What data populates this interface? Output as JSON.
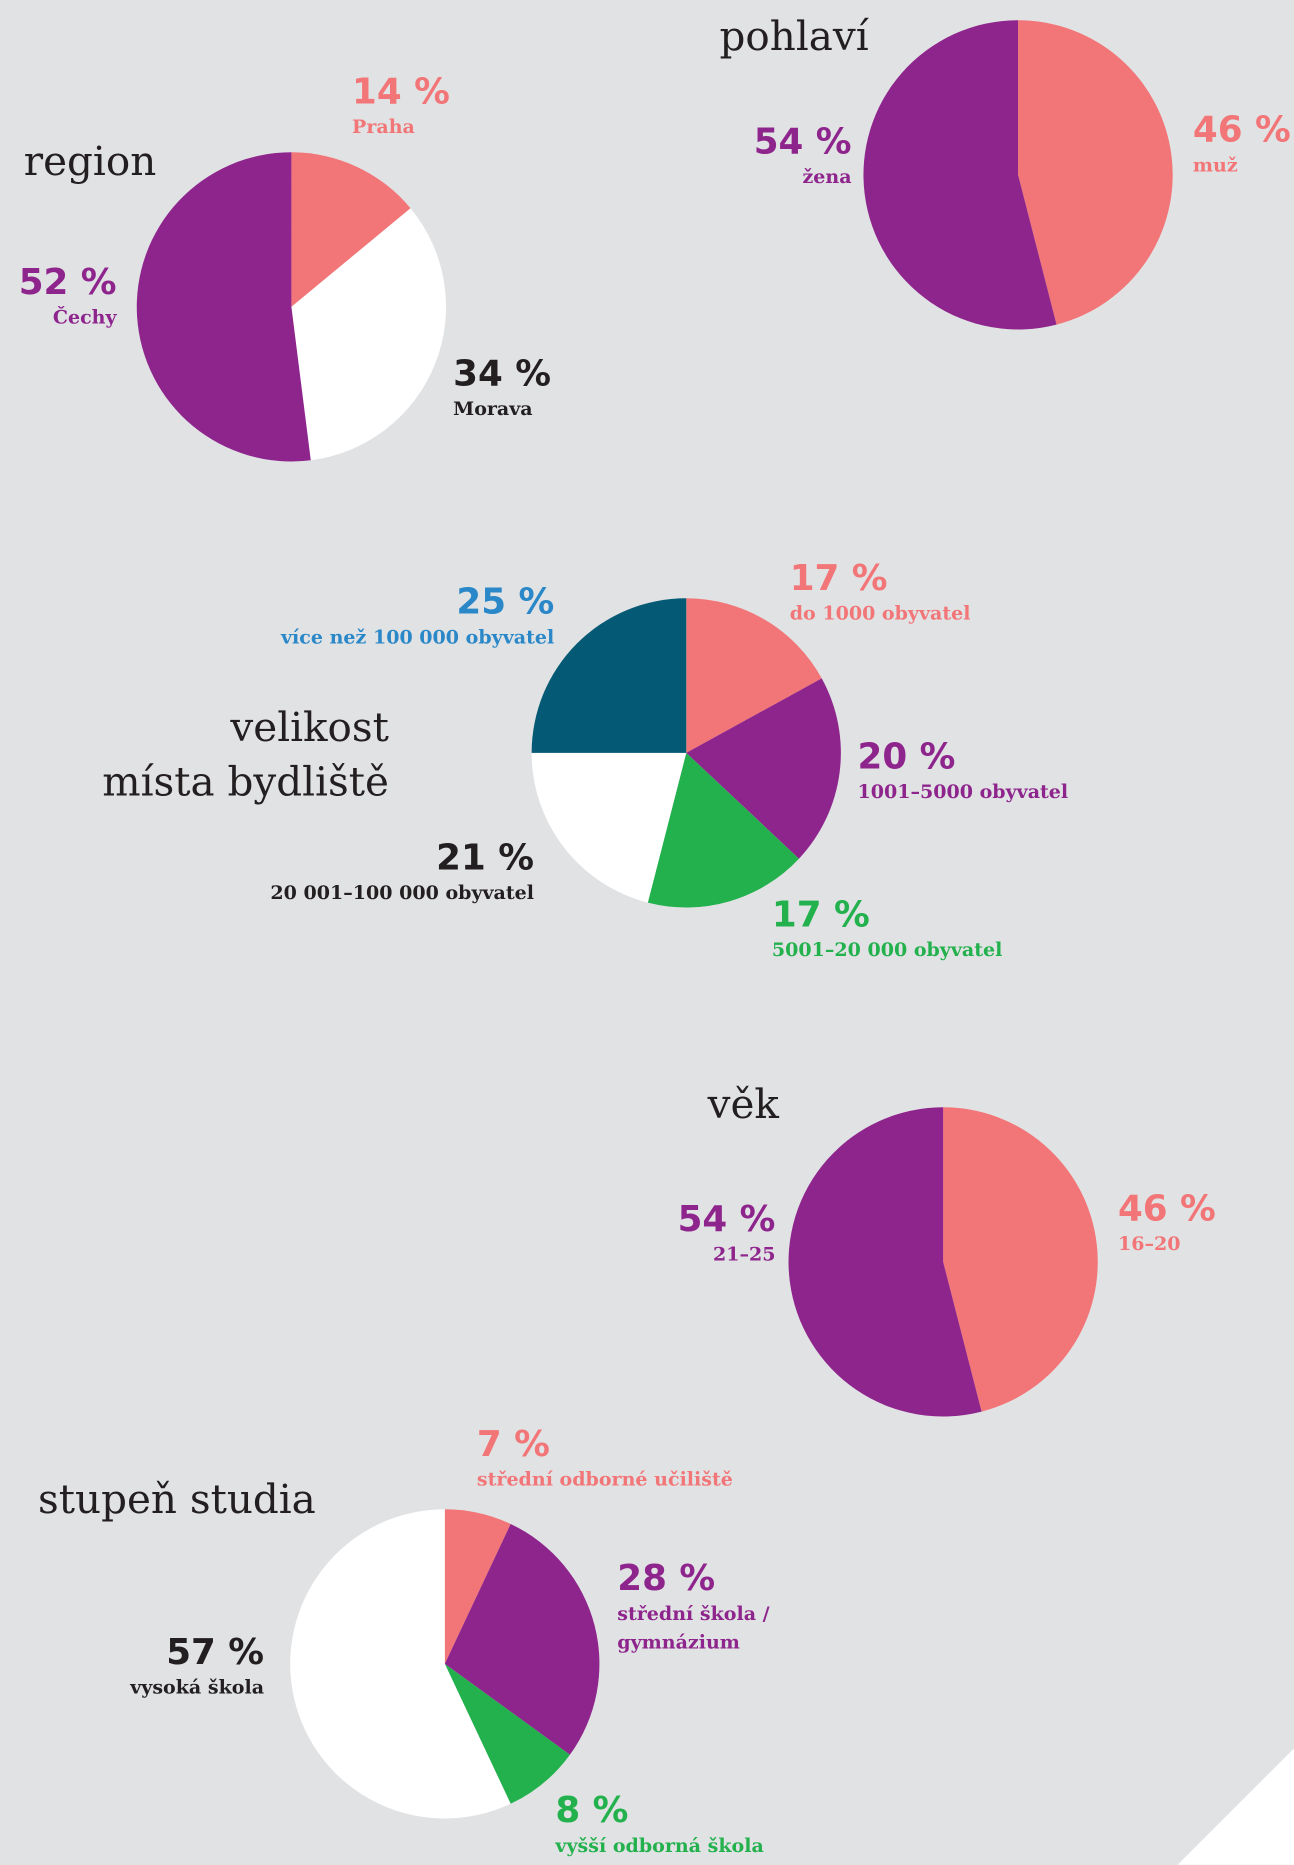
{
  "chart_data": [
    {
      "type": "pie",
      "title": "region",
      "categories": [
        "Praha",
        "Morava",
        "Čechy"
      ],
      "values": [
        14,
        34,
        52
      ],
      "value_labels": [
        "14 %",
        "34 %",
        "52 %"
      ],
      "colors": [
        "#f27577",
        "#ffffff",
        "#8e258d"
      ],
      "label_colors": [
        "#f27577",
        "#231f20",
        "#8e258d"
      ]
    },
    {
      "type": "pie",
      "title": "pohlaví",
      "categories": [
        "muž",
        "žena"
      ],
      "values": [
        46,
        54
      ],
      "value_labels": [
        "46 %",
        "54 %"
      ],
      "colors": [
        "#f27577",
        "#8e258d"
      ],
      "label_colors": [
        "#f27577",
        "#8e258d"
      ]
    },
    {
      "type": "pie",
      "title": "velikost\nmísta bydliště",
      "categories": [
        "do 1000 obyvatel",
        "1001–5000 obyvatel",
        "5001–20 000 obyvatel",
        "20 001–100 000 obyvatel",
        "více než 100 000 obyvatel"
      ],
      "values": [
        17,
        20,
        17,
        21,
        25
      ],
      "value_labels": [
        "17 %",
        "20 %",
        "17 %",
        "21 %",
        "25 %"
      ],
      "colors": [
        "#f27577",
        "#8e258d",
        "#23b14d",
        "#ffffff",
        "#045a75"
      ],
      "label_colors": [
        "#f27577",
        "#8e258d",
        "#23b14d",
        "#231f20",
        "#2a88c8"
      ]
    },
    {
      "type": "pie",
      "title": "věk",
      "categories": [
        "16–20",
        "21–25"
      ],
      "values": [
        46,
        54
      ],
      "value_labels": [
        "46 %",
        "54 %"
      ],
      "colors": [
        "#f27577",
        "#8e258d"
      ],
      "label_colors": [
        "#f27577",
        "#8e258d"
      ]
    },
    {
      "type": "pie",
      "title": "stupeň studia",
      "categories": [
        "střední odborné učiliště",
        "střední škola /\ngymnázium",
        "vyšší odborná škola",
        "vysoká škola"
      ],
      "values": [
        7,
        28,
        8,
        57
      ],
      "value_labels": [
        "7 %",
        "28 %",
        "8 %",
        "57 %"
      ],
      "colors": [
        "#f27577",
        "#8e258d",
        "#23b14d",
        "#ffffff"
      ],
      "label_colors": [
        "#f27577",
        "#8e258d",
        "#23b14d",
        "#231f20"
      ]
    }
  ]
}
